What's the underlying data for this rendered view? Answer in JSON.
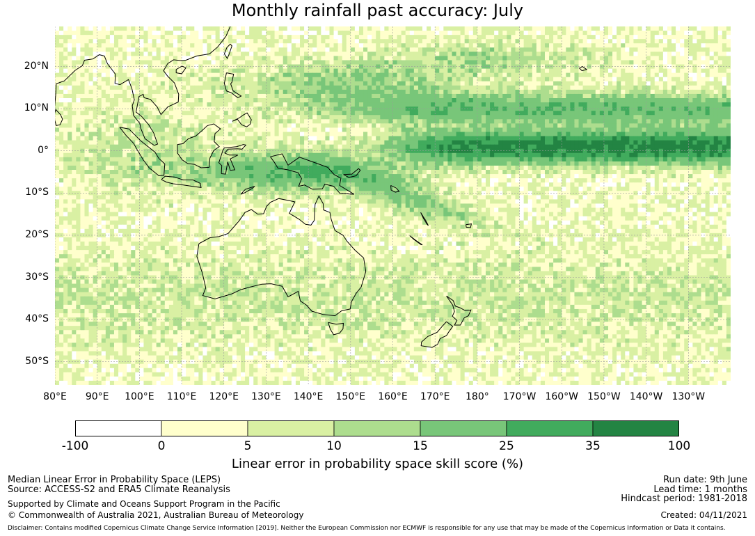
{
  "title": "Monthly rainfall past accuracy: July",
  "map": {
    "lat_labels": [
      "20°N",
      "10°N",
      "0°",
      "10°S",
      "20°S",
      "30°S",
      "40°S",
      "50°S"
    ],
    "lon_labels": [
      "80°E",
      "90°E",
      "100°E",
      "110°E",
      "120°E",
      "130°E",
      "140°E",
      "150°E",
      "160°E",
      "170°E",
      "180°",
      "170°W",
      "160°W",
      "150°W",
      "140°W",
      "130°W"
    ],
    "lat_range": [
      -55.5,
      29.5
    ],
    "lon_range": [
      80,
      240
    ],
    "colors": {
      "bin_neg": "#ffffff",
      "bin_0_5": "#ffffcc",
      "bin_5_10": "#d9f0a3",
      "bin_10_15": "#addd8e",
      "bin_15_25": "#78c679",
      "bin_25_35": "#41ab5d",
      "bin_35_100": "#238443",
      "coast": "#000000",
      "grid": "#9a9a9a"
    }
  },
  "colorbar": {
    "ticks": [
      "-100",
      "0",
      "5",
      "10",
      "15",
      "25",
      "35",
      "100"
    ],
    "colors": [
      "#ffffff",
      "#ffffcc",
      "#d9f0a3",
      "#addd8e",
      "#78c679",
      "#41ab5d",
      "#238443"
    ],
    "label": "Linear error in probability space skill score (%)"
  },
  "footer": {
    "left1": "Median Linear Error in Probability Space (LEPS)",
    "left2": "Source: ACCESS-S2 and ERA5 Climate Reanalysis",
    "left3": "Supported by Climate and Oceans Support Program in the Pacific",
    "left4": "© Commonwealth of Australia 2021, Australian Bureau of Meteorology",
    "right1": "Run date: 9th June",
    "right2": "Lead time: 1 months",
    "right3": "Hindcast period: 1981-2018",
    "right4": "Created: 04/11/2021",
    "disclaimer": "Disclaimer: Contains modified Copernicus Climate Change Service Information [2019]. Neither the European Commission nor ECMWF is responsible for any use that may be made of the Copernicus Information or Data it contains."
  }
}
